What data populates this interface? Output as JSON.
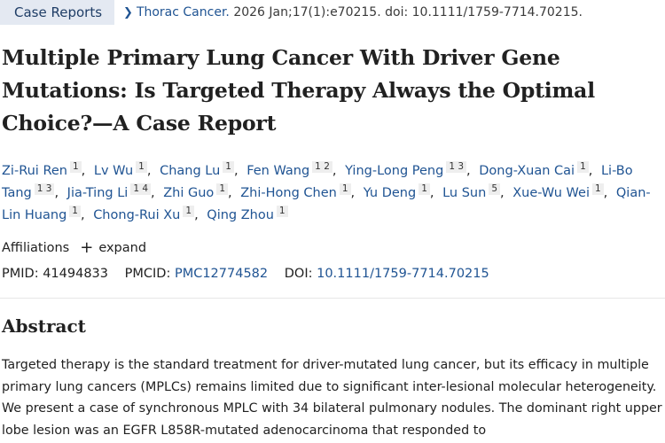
{
  "header": {
    "badge": "Case Reports",
    "journal": "Thorac Cancer.",
    "citation": "2026 Jan;17(1):e70215. doi: 10.1111/1759-7714.70215."
  },
  "article": {
    "title": "Multiple Primary Lung Cancer With Driver Gene Mutations: Is Targeted Therapy Always the Optimal Choice?—A Case Report"
  },
  "authors": [
    {
      "name": "Zi-Rui Ren",
      "aff": "1"
    },
    {
      "name": "Lv Wu",
      "aff": "1"
    },
    {
      "name": "Chang Lu",
      "aff": "1"
    },
    {
      "name": "Fen Wang",
      "aff": "1 2"
    },
    {
      "name": "Ying-Long Peng",
      "aff": "1 3"
    },
    {
      "name": "Dong-Xuan Cai",
      "aff": "1"
    },
    {
      "name": "Li-Bo Tang",
      "aff": "1 3"
    },
    {
      "name": "Jia-Ting Li",
      "aff": "1 4"
    },
    {
      "name": "Zhi Guo",
      "aff": "1"
    },
    {
      "name": "Zhi-Hong Chen",
      "aff": "1"
    },
    {
      "name": "Yu Deng",
      "aff": "1"
    },
    {
      "name": "Lu Sun",
      "aff": "5"
    },
    {
      "name": "Xue-Wu Wei",
      "aff": "1"
    },
    {
      "name": "Qian-Lin Huang",
      "aff": "1"
    },
    {
      "name": "Chong-Rui Xu",
      "aff": "1"
    },
    {
      "name": "Qing Zhou",
      "aff": "1"
    }
  ],
  "affiliations": {
    "label": "Affiliations",
    "expand": "expand"
  },
  "identifiers": {
    "pmid_label": "PMID:",
    "pmid": "41494833",
    "pmcid_label": "PMCID:",
    "pmcid": "PMC12774582",
    "doi_label": "DOI:",
    "doi": "10.1111/1759-7714.70215"
  },
  "abstract": {
    "heading": "Abstract",
    "text": "Targeted therapy is the standard treatment for driver-mutated lung cancer, but its efficacy in multiple primary lung cancers (MPLCs) remains limited due to significant inter-lesional molecular heterogeneity. We present a case of synchronous MPLC with 34 bilateral pulmonary nodules. The dominant right upper lobe lesion was an EGFR L858R-mutated adenocarcinoma that responded to"
  }
}
